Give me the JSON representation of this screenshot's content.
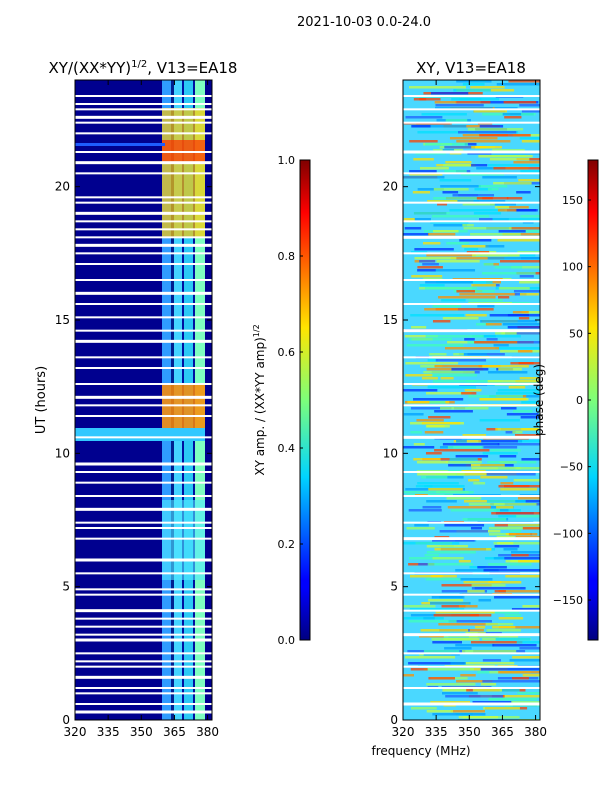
{
  "chart_data": {
    "suptitle": "2021-10-03 0.0-24.0",
    "xlabel": "frequency (MHz)",
    "panels": [
      {
        "type": "heatmap",
        "title": "XY/(XX*YY)",
        "title_sup": "1/2",
        "title_suffix": ", V13=EA18",
        "ylabel": "UT (hours)",
        "xlim": [
          320,
          382
        ],
        "ylim": [
          0,
          24
        ],
        "xticks": [
          320,
          335,
          350,
          365,
          380
        ],
        "yticks": [
          0,
          5,
          10,
          15,
          20
        ],
        "colorbar": {
          "label": "XY amp. / (XX*YY amp)",
          "label_sup": "1/2",
          "range": [
            0.0,
            1.0
          ],
          "ticks": [
            "0.0",
            "0.2",
            "0.4",
            "0.6",
            "0.8",
            "1.0"
          ],
          "tick_values": [
            0.0,
            0.2,
            0.4,
            0.6,
            0.8,
            1.0
          ]
        },
        "gap_hours": [
          0.3,
          0.6,
          1.0,
          1.2,
          1.6,
          2.0,
          2.2,
          2.5,
          3.0,
          3.2,
          3.5,
          3.8,
          4.1,
          4.7,
          4.9,
          5.5,
          6.0,
          6.8,
          7.2,
          7.4,
          7.9,
          8.4,
          8.9,
          9.3,
          9.6,
          10.6,
          11.4,
          11.8,
          12.1,
          12.6,
          13.2,
          13.6,
          14.2,
          14.6,
          15.1,
          15.6,
          16.0,
          16.5,
          17.1,
          17.5,
          17.8,
          18.1,
          18.4,
          18.7,
          19.0,
          19.4,
          19.6,
          20.5,
          20.9,
          21.3,
          22.0,
          22.4,
          22.6,
          22.9,
          23.1,
          23.4
        ]
      },
      {
        "type": "heatmap",
        "title": "XY, V13=EA18",
        "xlim": [
          320,
          382
        ],
        "ylim": [
          0,
          24
        ],
        "xticks": [
          320,
          335,
          350,
          365,
          380
        ],
        "yticks": [
          0,
          5,
          10,
          15,
          20
        ],
        "colorbar": {
          "label": "phase (deg)",
          "range": [
            -180,
            180
          ],
          "ticks": [
            "−150",
            "−100",
            "−50",
            "0",
            "50",
            "100",
            "150"
          ],
          "tick_values": [
            -150,
            -100,
            -50,
            0,
            50,
            100,
            150
          ]
        },
        "gap_hours": [
          0.6,
          1.2,
          2.0,
          2.5,
          3.2,
          4.1,
          4.7,
          5.5,
          6.8,
          7.4,
          8.4,
          9.3,
          10.6,
          11.8,
          12.6,
          13.6,
          14.6,
          15.6,
          16.5,
          17.5,
          18.1,
          18.7,
          19.4,
          20.5,
          21.3,
          22.4,
          22.9,
          23.4
        ]
      }
    ]
  }
}
